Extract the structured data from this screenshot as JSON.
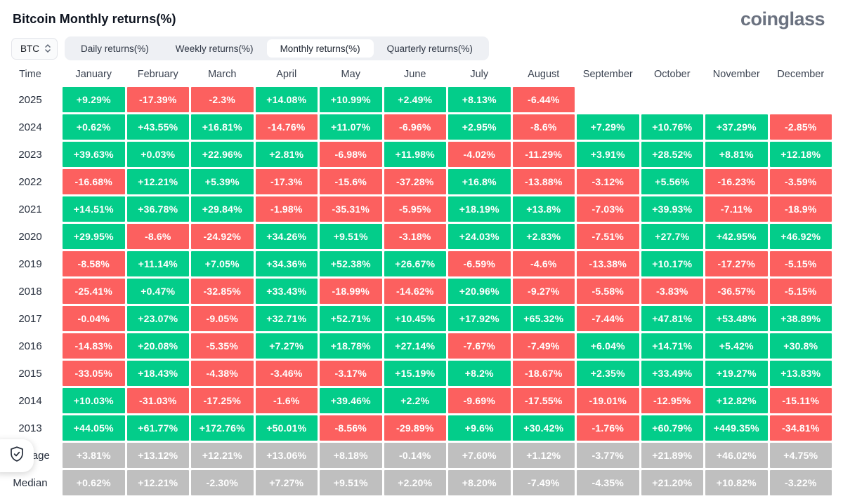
{
  "header": {
    "title": "Bitcoin Monthly returns(%)",
    "logo": "coinglass"
  },
  "controls": {
    "symbol": "BTC",
    "tabs": [
      {
        "label": "Daily returns(%)"
      },
      {
        "label": "Weekly returns(%)"
      },
      {
        "label": "Monthly returns(%)",
        "active": true
      },
      {
        "label": "Quarterly returns(%)"
      }
    ]
  },
  "colors": {
    "positive": "#03cd8a",
    "negative": "#fc605f",
    "neutral": "#bfbfbf"
  },
  "table": {
    "time_header": "Time",
    "months": [
      "January",
      "February",
      "March",
      "April",
      "May",
      "June",
      "July",
      "August",
      "September",
      "October",
      "November",
      "December"
    ],
    "rows": [
      {
        "label": "2025",
        "cells": [
          [
            "+9.29%",
            "g"
          ],
          [
            "-17.39%",
            "r"
          ],
          [
            "-2.3%",
            "r"
          ],
          [
            "+14.08%",
            "g"
          ],
          [
            "+10.99%",
            "g"
          ],
          [
            "+2.49%",
            "g"
          ],
          [
            "+8.13%",
            "g"
          ],
          [
            "-6.44%",
            "r"
          ],
          null,
          null,
          null,
          null
        ]
      },
      {
        "label": "2024",
        "cells": [
          [
            "+0.62%",
            "g"
          ],
          [
            "+43.55%",
            "g"
          ],
          [
            "+16.81%",
            "g"
          ],
          [
            "-14.76%",
            "r"
          ],
          [
            "+11.07%",
            "g"
          ],
          [
            "-6.96%",
            "r"
          ],
          [
            "+2.95%",
            "g"
          ],
          [
            "-8.6%",
            "r"
          ],
          [
            "+7.29%",
            "g"
          ],
          [
            "+10.76%",
            "g"
          ],
          [
            "+37.29%",
            "g"
          ],
          [
            "-2.85%",
            "r"
          ]
        ]
      },
      {
        "label": "2023",
        "cells": [
          [
            "+39.63%",
            "g"
          ],
          [
            "+0.03%",
            "g"
          ],
          [
            "+22.96%",
            "g"
          ],
          [
            "+2.81%",
            "g"
          ],
          [
            "-6.98%",
            "r"
          ],
          [
            "+11.98%",
            "g"
          ],
          [
            "-4.02%",
            "r"
          ],
          [
            "-11.29%",
            "r"
          ],
          [
            "+3.91%",
            "g"
          ],
          [
            "+28.52%",
            "g"
          ],
          [
            "+8.81%",
            "g"
          ],
          [
            "+12.18%",
            "g"
          ]
        ]
      },
      {
        "label": "2022",
        "cells": [
          [
            "-16.68%",
            "r"
          ],
          [
            "+12.21%",
            "g"
          ],
          [
            "+5.39%",
            "g"
          ],
          [
            "-17.3%",
            "r"
          ],
          [
            "-15.6%",
            "r"
          ],
          [
            "-37.28%",
            "r"
          ],
          [
            "+16.8%",
            "g"
          ],
          [
            "-13.88%",
            "r"
          ],
          [
            "-3.12%",
            "r"
          ],
          [
            "+5.56%",
            "g"
          ],
          [
            "-16.23%",
            "r"
          ],
          [
            "-3.59%",
            "r"
          ]
        ]
      },
      {
        "label": "2021",
        "cells": [
          [
            "+14.51%",
            "g"
          ],
          [
            "+36.78%",
            "g"
          ],
          [
            "+29.84%",
            "g"
          ],
          [
            "-1.98%",
            "r"
          ],
          [
            "-35.31%",
            "r"
          ],
          [
            "-5.95%",
            "r"
          ],
          [
            "+18.19%",
            "g"
          ],
          [
            "+13.8%",
            "g"
          ],
          [
            "-7.03%",
            "r"
          ],
          [
            "+39.93%",
            "g"
          ],
          [
            "-7.11%",
            "r"
          ],
          [
            "-18.9%",
            "r"
          ]
        ]
      },
      {
        "label": "2020",
        "cells": [
          [
            "+29.95%",
            "g"
          ],
          [
            "-8.6%",
            "r"
          ],
          [
            "-24.92%",
            "r"
          ],
          [
            "+34.26%",
            "g"
          ],
          [
            "+9.51%",
            "g"
          ],
          [
            "-3.18%",
            "r"
          ],
          [
            "+24.03%",
            "g"
          ],
          [
            "+2.83%",
            "g"
          ],
          [
            "-7.51%",
            "r"
          ],
          [
            "+27.7%",
            "g"
          ],
          [
            "+42.95%",
            "g"
          ],
          [
            "+46.92%",
            "g"
          ]
        ]
      },
      {
        "label": "2019",
        "cells": [
          [
            "-8.58%",
            "r"
          ],
          [
            "+11.14%",
            "g"
          ],
          [
            "+7.05%",
            "g"
          ],
          [
            "+34.36%",
            "g"
          ],
          [
            "+52.38%",
            "g"
          ],
          [
            "+26.67%",
            "g"
          ],
          [
            "-6.59%",
            "r"
          ],
          [
            "-4.6%",
            "r"
          ],
          [
            "-13.38%",
            "r"
          ],
          [
            "+10.17%",
            "g"
          ],
          [
            "-17.27%",
            "r"
          ],
          [
            "-5.15%",
            "r"
          ]
        ]
      },
      {
        "label": "2018",
        "cells": [
          [
            "-25.41%",
            "r"
          ],
          [
            "+0.47%",
            "g"
          ],
          [
            "-32.85%",
            "r"
          ],
          [
            "+33.43%",
            "g"
          ],
          [
            "-18.99%",
            "r"
          ],
          [
            "-14.62%",
            "r"
          ],
          [
            "+20.96%",
            "g"
          ],
          [
            "-9.27%",
            "r"
          ],
          [
            "-5.58%",
            "r"
          ],
          [
            "-3.83%",
            "r"
          ],
          [
            "-36.57%",
            "r"
          ],
          [
            "-5.15%",
            "r"
          ]
        ]
      },
      {
        "label": "2017",
        "cells": [
          [
            "-0.04%",
            "r"
          ],
          [
            "+23.07%",
            "g"
          ],
          [
            "-9.05%",
            "r"
          ],
          [
            "+32.71%",
            "g"
          ],
          [
            "+52.71%",
            "g"
          ],
          [
            "+10.45%",
            "g"
          ],
          [
            "+17.92%",
            "g"
          ],
          [
            "+65.32%",
            "g"
          ],
          [
            "-7.44%",
            "r"
          ],
          [
            "+47.81%",
            "g"
          ],
          [
            "+53.48%",
            "g"
          ],
          [
            "+38.89%",
            "g"
          ]
        ]
      },
      {
        "label": "2016",
        "cells": [
          [
            "-14.83%",
            "r"
          ],
          [
            "+20.08%",
            "g"
          ],
          [
            "-5.35%",
            "r"
          ],
          [
            "+7.27%",
            "g"
          ],
          [
            "+18.78%",
            "g"
          ],
          [
            "+27.14%",
            "g"
          ],
          [
            "-7.67%",
            "r"
          ],
          [
            "-7.49%",
            "r"
          ],
          [
            "+6.04%",
            "g"
          ],
          [
            "+14.71%",
            "g"
          ],
          [
            "+5.42%",
            "g"
          ],
          [
            "+30.8%",
            "g"
          ]
        ]
      },
      {
        "label": "2015",
        "cells": [
          [
            "-33.05%",
            "r"
          ],
          [
            "+18.43%",
            "g"
          ],
          [
            "-4.38%",
            "r"
          ],
          [
            "-3.46%",
            "r"
          ],
          [
            "-3.17%",
            "r"
          ],
          [
            "+15.19%",
            "g"
          ],
          [
            "+8.2%",
            "g"
          ],
          [
            "-18.67%",
            "r"
          ],
          [
            "+2.35%",
            "g"
          ],
          [
            "+33.49%",
            "g"
          ],
          [
            "+19.27%",
            "g"
          ],
          [
            "+13.83%",
            "g"
          ]
        ]
      },
      {
        "label": "2014",
        "cells": [
          [
            "+10.03%",
            "g"
          ],
          [
            "-31.03%",
            "r"
          ],
          [
            "-17.25%",
            "r"
          ],
          [
            "-1.6%",
            "r"
          ],
          [
            "+39.46%",
            "g"
          ],
          [
            "+2.2%",
            "g"
          ],
          [
            "-9.69%",
            "r"
          ],
          [
            "-17.55%",
            "r"
          ],
          [
            "-19.01%",
            "r"
          ],
          [
            "-12.95%",
            "r"
          ],
          [
            "+12.82%",
            "g"
          ],
          [
            "-15.11%",
            "r"
          ]
        ]
      },
      {
        "label": "2013",
        "cells": [
          [
            "+44.05%",
            "g"
          ],
          [
            "+61.77%",
            "g"
          ],
          [
            "+172.76%",
            "g"
          ],
          [
            "+50.01%",
            "g"
          ],
          [
            "-8.56%",
            "r"
          ],
          [
            "-29.89%",
            "r"
          ],
          [
            "+9.6%",
            "g"
          ],
          [
            "+30.42%",
            "g"
          ],
          [
            "-1.76%",
            "r"
          ],
          [
            "+60.79%",
            "g"
          ],
          [
            "+449.35%",
            "g"
          ],
          [
            "-34.81%",
            "r"
          ]
        ]
      },
      {
        "label": "Average",
        "cells": [
          [
            "+3.81%",
            "x"
          ],
          [
            "+13.12%",
            "x"
          ],
          [
            "+12.21%",
            "x"
          ],
          [
            "+13.06%",
            "x"
          ],
          [
            "+8.18%",
            "x"
          ],
          [
            "-0.14%",
            "x"
          ],
          [
            "+7.60%",
            "x"
          ],
          [
            "+1.12%",
            "x"
          ],
          [
            "-3.77%",
            "x"
          ],
          [
            "+21.89%",
            "x"
          ],
          [
            "+46.02%",
            "x"
          ],
          [
            "+4.75%",
            "x"
          ]
        ]
      },
      {
        "label": "Median",
        "cells": [
          [
            "+0.62%",
            "x"
          ],
          [
            "+12.21%",
            "x"
          ],
          [
            "-2.30%",
            "x"
          ],
          [
            "+7.27%",
            "x"
          ],
          [
            "+9.51%",
            "x"
          ],
          [
            "+2.20%",
            "x"
          ],
          [
            "+8.20%",
            "x"
          ],
          [
            "-7.49%",
            "x"
          ],
          [
            "-4.35%",
            "x"
          ],
          [
            "+21.20%",
            "x"
          ],
          [
            "+10.82%",
            "x"
          ],
          [
            "-3.22%",
            "x"
          ]
        ]
      }
    ]
  }
}
